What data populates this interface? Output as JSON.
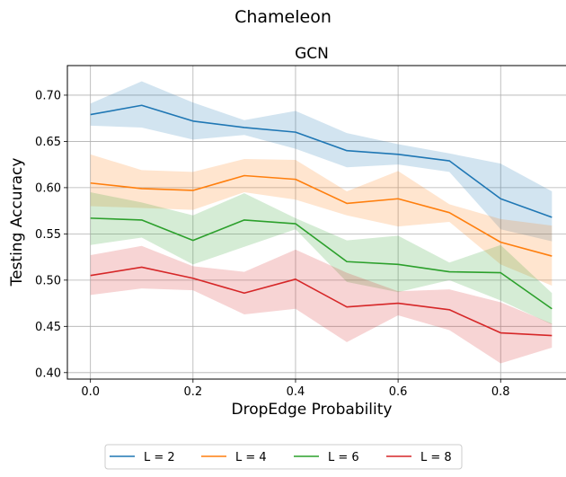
{
  "chart_data": {
    "type": "line",
    "suptitle": "Chameleon",
    "title": "GCN",
    "xlabel": "DropEdge Probability",
    "ylabel": "Testing Accuracy",
    "xlim": [
      -0.045,
      0.945
    ],
    "ylim": [
      0.393,
      0.732
    ],
    "x_ticks": [
      0.0,
      0.2,
      0.4,
      0.6,
      0.8
    ],
    "x_tick_labels": [
      "0.0",
      "0.2",
      "0.4",
      "0.6",
      "0.8"
    ],
    "y_ticks": [
      0.4,
      0.45,
      0.5,
      0.55,
      0.6,
      0.65,
      0.7
    ],
    "y_tick_labels": [
      "0.40",
      "0.45",
      "0.50",
      "0.55",
      "0.60",
      "0.65",
      "0.70"
    ],
    "grid": true,
    "legend_position": "bottom-center-outside",
    "x": [
      0.0,
      0.1,
      0.2,
      0.3,
      0.4,
      0.5,
      0.6,
      0.7,
      0.8,
      0.9
    ],
    "series": [
      {
        "name": "L = 2",
        "color": "#1f77b4",
        "values": [
          0.679,
          0.689,
          0.672,
          0.665,
          0.66,
          0.64,
          0.636,
          0.629,
          0.588,
          0.568
        ],
        "lower": [
          0.667,
          0.665,
          0.652,
          0.657,
          0.642,
          0.622,
          0.625,
          0.617,
          0.555,
          0.542
        ],
        "upper": [
          0.691,
          0.715,
          0.692,
          0.673,
          0.683,
          0.659,
          0.647,
          0.637,
          0.626,
          0.596
        ]
      },
      {
        "name": "L = 4",
        "color": "#ff7f0e",
        "values": [
          0.605,
          0.599,
          0.597,
          0.613,
          0.609,
          0.583,
          0.588,
          0.573,
          0.541,
          0.526
        ],
        "lower": [
          0.58,
          0.578,
          0.576,
          0.595,
          0.587,
          0.57,
          0.558,
          0.563,
          0.517,
          0.494
        ],
        "upper": [
          0.636,
          0.619,
          0.617,
          0.631,
          0.63,
          0.596,
          0.618,
          0.582,
          0.566,
          0.559
        ]
      },
      {
        "name": "L = 6",
        "color": "#2ca02c",
        "values": [
          0.567,
          0.565,
          0.543,
          0.565,
          0.561,
          0.52,
          0.517,
          0.509,
          0.508,
          0.469
        ],
        "lower": [
          0.538,
          0.546,
          0.517,
          0.536,
          0.555,
          0.498,
          0.487,
          0.5,
          0.478,
          0.452
        ],
        "upper": [
          0.595,
          0.584,
          0.57,
          0.594,
          0.567,
          0.543,
          0.548,
          0.519,
          0.538,
          0.486
        ]
      },
      {
        "name": "L = 8",
        "color": "#d62728",
        "values": [
          0.505,
          0.514,
          0.502,
          0.486,
          0.501,
          0.471,
          0.475,
          0.468,
          0.443,
          0.44
        ],
        "lower": [
          0.484,
          0.491,
          0.489,
          0.463,
          0.469,
          0.433,
          0.462,
          0.446,
          0.41,
          0.427
        ],
        "upper": [
          0.527,
          0.537,
          0.515,
          0.509,
          0.533,
          0.508,
          0.488,
          0.49,
          0.476,
          0.453
        ]
      }
    ]
  }
}
